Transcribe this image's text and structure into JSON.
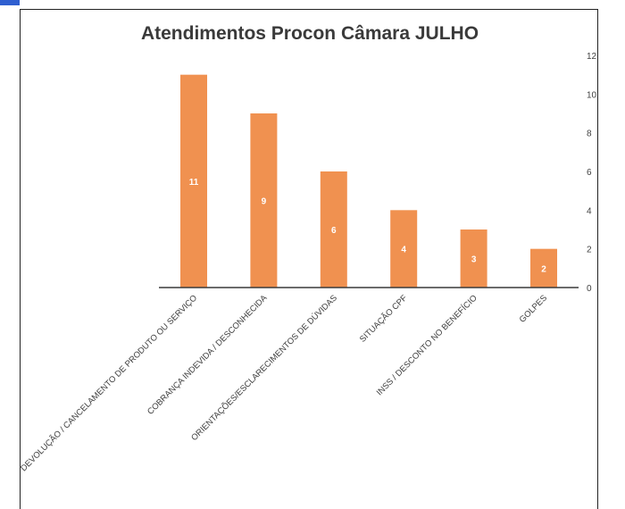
{
  "chart_data": {
    "type": "bar",
    "title": "Atendimentos Procon Câmara JULHO",
    "categories": [
      "DEVOLUÇÃO / CANCELAMENTO DE PRODUTO OU SERVIÇO",
      "COBRANÇA INDEVIDA / DESCONHECIDA",
      "ORIENTAÇÕES/ESCLARECIMENTOS DE DÚVIDAS",
      "SITUAÇÃO CPF",
      "INSS / DESCONTO NO BENEFÍCIO",
      "GOLPES"
    ],
    "values": [
      11,
      9,
      6,
      4,
      3,
      2
    ],
    "data_labels": [
      "11",
      "9",
      "6",
      "4",
      "3",
      "2"
    ],
    "ylim": [
      0,
      12
    ],
    "yticks": [
      0,
      2,
      4,
      6,
      8,
      10,
      12
    ],
    "ytick_labels": [
      "0",
      "2",
      "4",
      "6",
      "8",
      "10",
      "12"
    ],
    "y_axis_side": "right",
    "grid": false,
    "legend": "none",
    "bar_color": "#f09150",
    "data_label_color": "#ffffff"
  }
}
